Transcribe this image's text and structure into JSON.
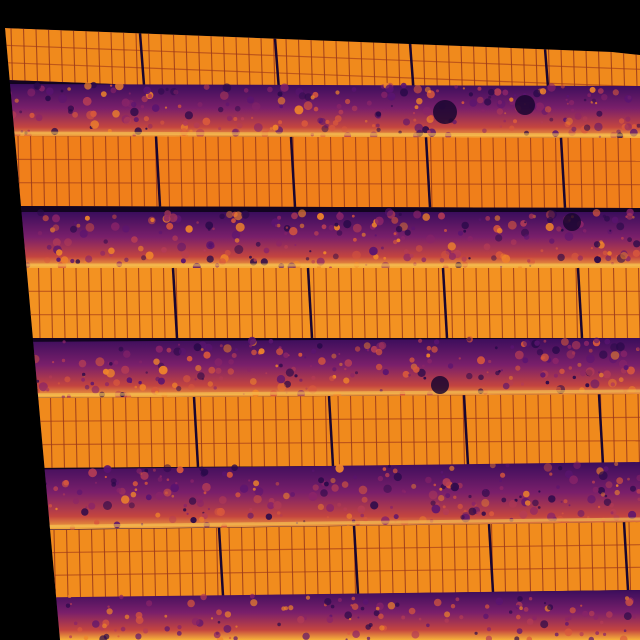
{
  "image": {
    "kind": "aerial thermal image",
    "palette": [
      "#000004",
      "#1b0c41",
      "#4a0c6b",
      "#781c6d",
      "#a52c60",
      "#cf4446",
      "#ed6925",
      "#fb9b06",
      "#f7d13d",
      "#fcffa4"
    ],
    "background_color": "#000000",
    "rows": [
      {
        "panel_color": "#f08a1c"
      },
      {
        "panel_color": "#f07f1a"
      },
      {
        "panel_color": "#f39221"
      },
      {
        "panel_color": "#f08a1c"
      },
      {
        "panel_color": "#f18c1d"
      }
    ],
    "vegetation_colors": [
      "#2a0a4a",
      "#5a1470",
      "#8a2468",
      "#b43c55",
      "#d8583c",
      "#f0842a"
    ]
  }
}
